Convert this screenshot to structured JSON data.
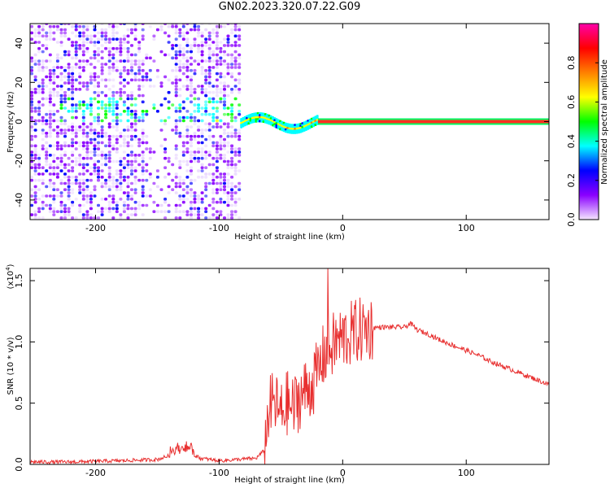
{
  "title": "GN02.2023.320.07.22.G09",
  "chart_data": [
    {
      "type": "heatmap",
      "xlabel": "Height of straight line (km)",
      "ylabel": "Frequency (Hz)",
      "xlim": [
        -253,
        167
      ],
      "ylim": [
        -50,
        50
      ],
      "xticks": [
        -200,
        -100,
        0,
        100
      ],
      "xtick_labels": [
        "-200",
        "-100",
        "0",
        "100"
      ],
      "yticks": [
        40,
        20,
        0,
        -20,
        -40
      ],
      "ytick_labels": [
        "40",
        "20",
        "0",
        "-20",
        "-40"
      ],
      "colorbar": {
        "label": "Normalized spectral amplitude",
        "range": [
          0,
          1
        ],
        "ticks": [
          0.0,
          0.2,
          0.4,
          0.6,
          0.8
        ],
        "tick_labels": [
          "0.0",
          "0.2",
          "0.4",
          "0.6",
          "0.8"
        ],
        "colormap": [
          "#f5e6ff",
          "#8a00ff",
          "#0000ff",
          "#00ffff",
          "#00ff00",
          "#ffff00",
          "#ff8000",
          "#ff0000",
          "#ff00aa"
        ]
      },
      "features": {
        "noise_region_x": [
          -253,
          -83
        ],
        "signal_line_freq": 0,
        "carrier_start_x": -20,
        "carrier_end_x": 167
      },
      "grid": false
    },
    {
      "type": "line",
      "xlabel": "Height of straight line (km)",
      "ylabel": "SNR (10 * v/v)",
      "multiplier_label": "(x10",
      "multiplier_exp": "4",
      "multiplier_close": ")",
      "xlim": [
        -253,
        167
      ],
      "ylim": [
        0,
        1.6
      ],
      "xticks": [
        -200,
        -100,
        0,
        100
      ],
      "xtick_labels": [
        "-200",
        "-100",
        "0",
        "100"
      ],
      "yticks": [
        0.0,
        0.5,
        1.0,
        1.5
      ],
      "ytick_labels": [
        "0.0",
        "0.5",
        "1.0",
        "1.5"
      ],
      "color": "#e83030",
      "series": [
        {
          "x": [
            -253,
            -220,
            -180,
            -150,
            -135,
            -125,
            -115,
            -100,
            -85,
            -70,
            -63,
            -60,
            -55,
            -50,
            -45,
            -40,
            -35,
            -30,
            -25,
            -20,
            -15,
            -10,
            -5,
            0,
            10,
            20,
            30,
            40,
            50,
            55,
            60,
            70,
            80,
            90,
            100,
            110,
            120,
            130,
            140,
            150,
            160,
            167
          ],
          "values": [
            0.02,
            0.02,
            0.03,
            0.04,
            0.09,
            0.1,
            0.05,
            0.03,
            0.04,
            0.05,
            0.12,
            0.45,
            0.5,
            0.4,
            0.5,
            0.45,
            0.55,
            0.6,
            0.65,
            0.75,
            0.9,
            0.95,
            1.0,
            1.03,
            1.08,
            1.11,
            1.12,
            1.12,
            1.12,
            1.15,
            1.1,
            1.06,
            1.01,
            0.97,
            0.93,
            0.89,
            0.84,
            0.8,
            0.76,
            0.72,
            0.68,
            0.65
          ]
        }
      ],
      "grid": false
    }
  ]
}
